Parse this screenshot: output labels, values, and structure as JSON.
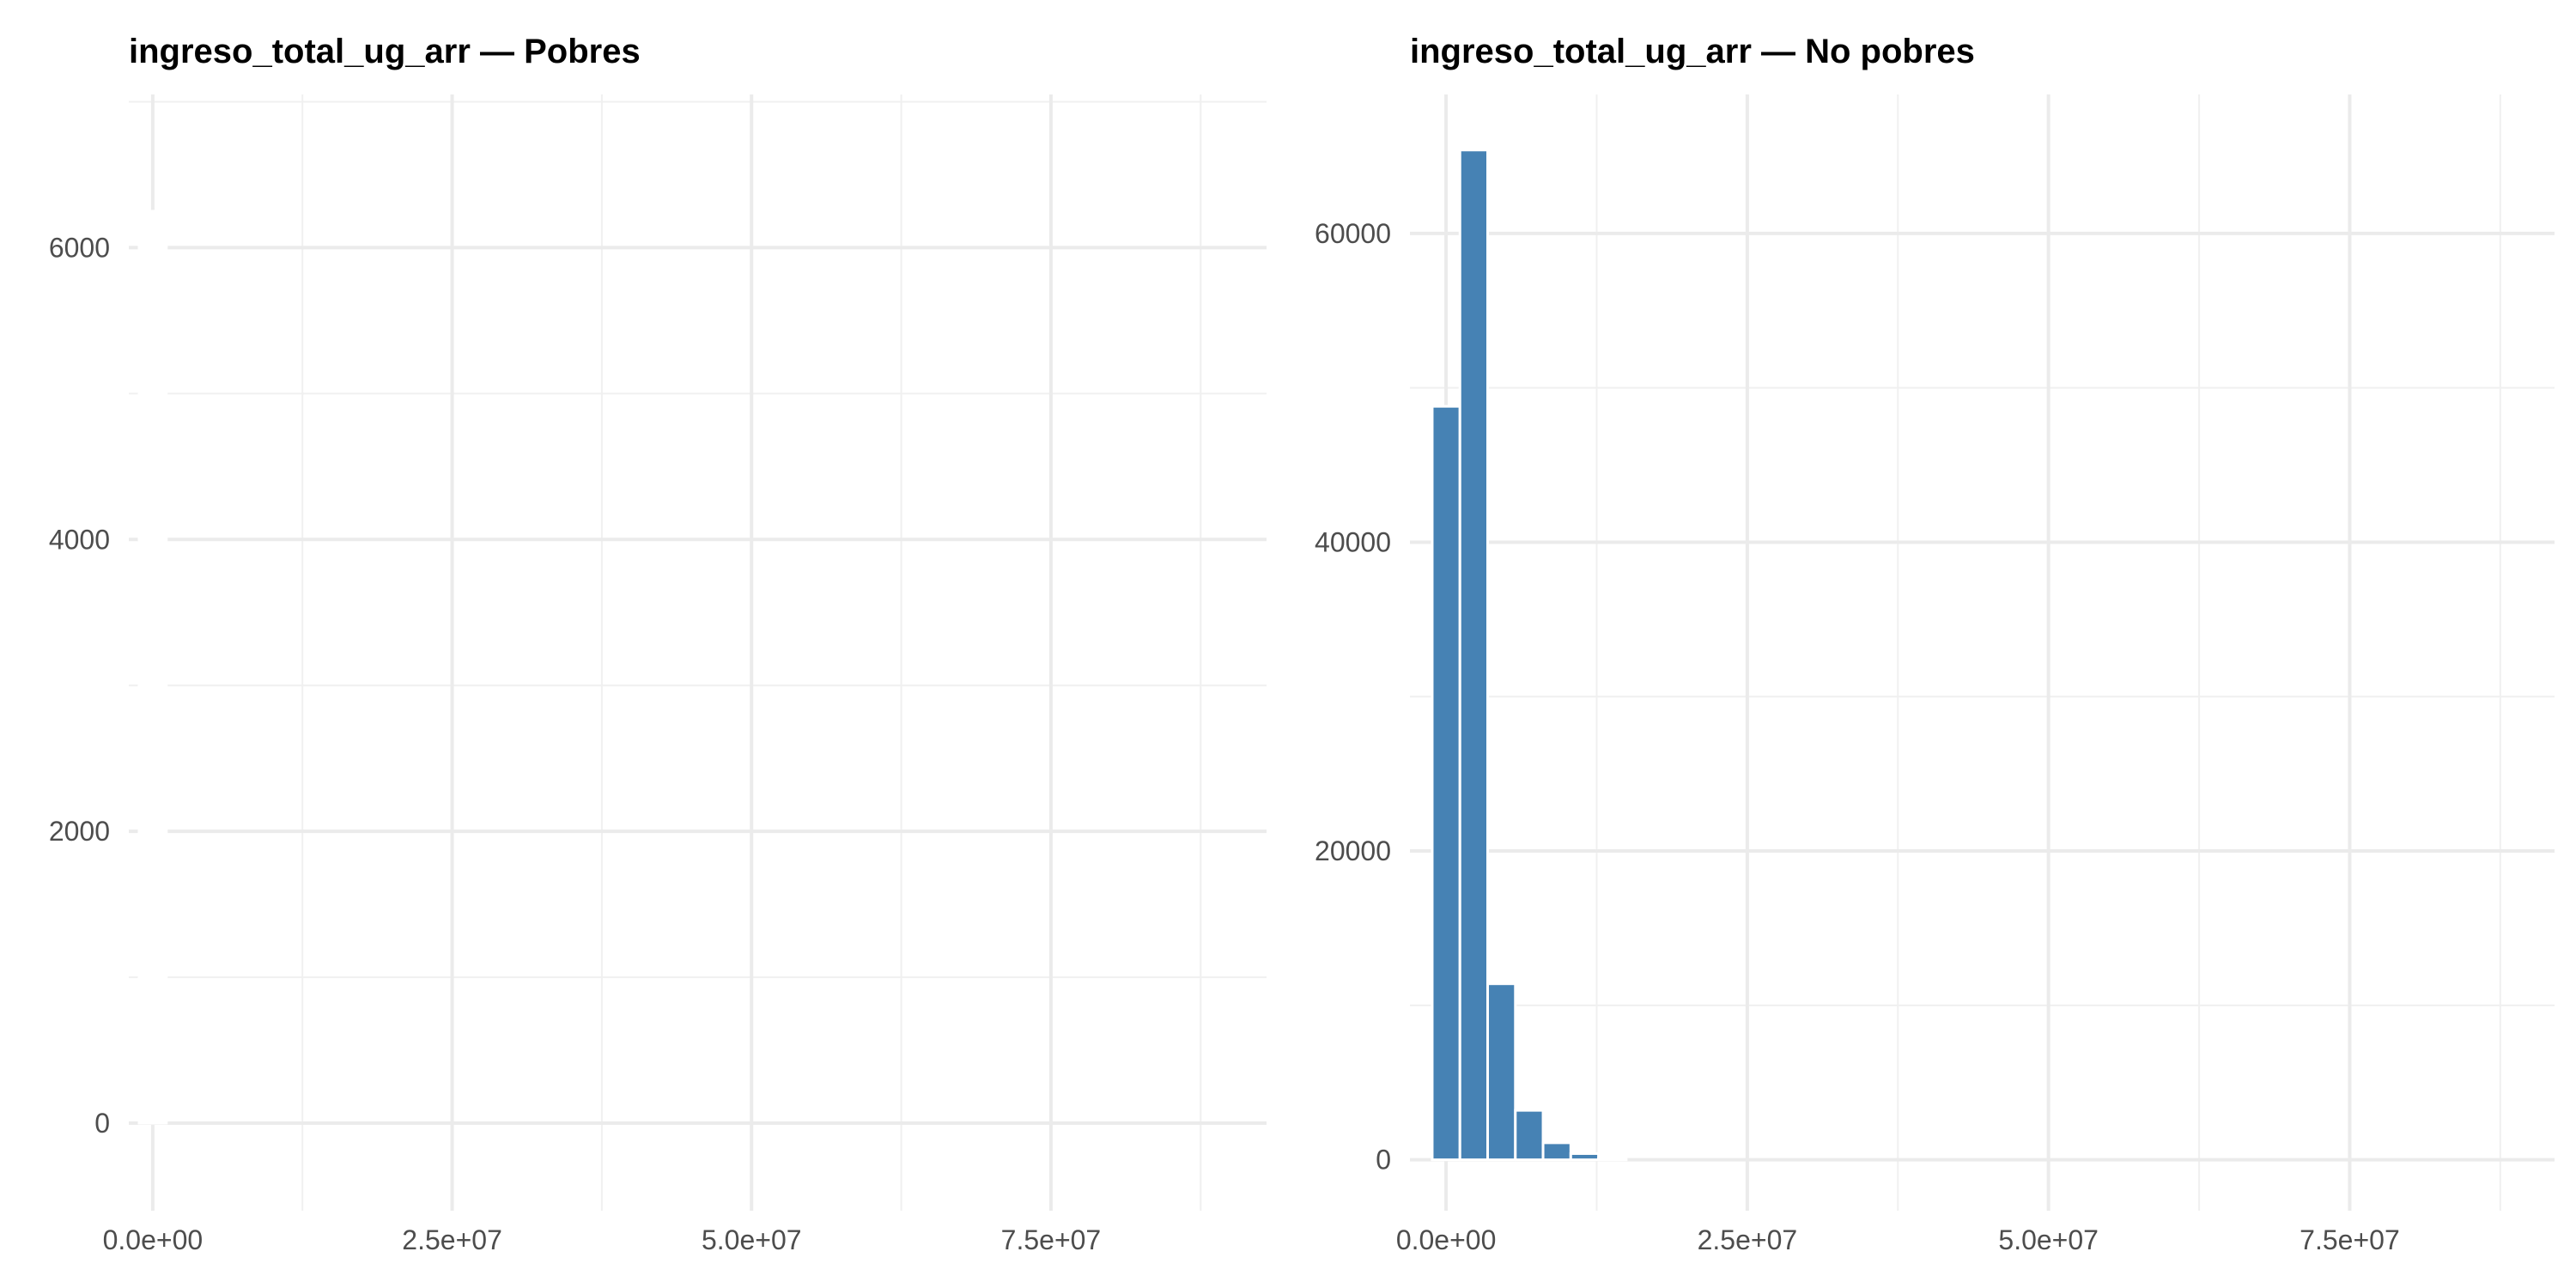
{
  "chart_data": [
    {
      "type": "bar",
      "title": "ingreso_total_ug_arr — Pobres",
      "xlabel": "",
      "ylabel": "",
      "xlim": [
        -2000000,
        93000000
      ],
      "ylim": [
        -600,
        7050
      ],
      "bin_width": 2280000,
      "x_ticks": [
        0,
        25000000,
        50000000,
        75000000
      ],
      "x_tick_labels": [
        "0.0e+00",
        "2.5e+07",
        "5.0e+07",
        "7.5e+07"
      ],
      "y_ticks": [
        0,
        2000,
        4000,
        6000
      ],
      "y_tick_labels": [
        "0",
        "2000",
        "4000",
        "6000"
      ],
      "x": [
        0
      ],
      "values": [
        6250
      ],
      "bar_color": "#ffffff",
      "grid": true,
      "legend": "none"
    },
    {
      "type": "bar",
      "title": "ingreso_total_ug_arr — No pobres",
      "xlabel": "",
      "ylabel": "",
      "xlim": [
        -3000000,
        92000000
      ],
      "ylim": [
        -3300,
        69000
      ],
      "bin_width": 2300000,
      "x_ticks": [
        0,
        25000000,
        50000000,
        75000000
      ],
      "x_tick_labels": [
        "0.0e+00",
        "2.5e+07",
        "5.0e+07",
        "7.5e+07"
      ],
      "y_ticks": [
        0,
        20000,
        40000,
        60000
      ],
      "y_tick_labels": [
        "0",
        "20000",
        "40000",
        "60000"
      ],
      "x": [
        0,
        2300000,
        4600000,
        6900000,
        9200000,
        11500000,
        13800000
      ],
      "values": [
        48800,
        65400,
        11400,
        3200,
        1100,
        400,
        100
      ],
      "bar_color": "#4682b4",
      "grid": true,
      "legend": "none"
    }
  ]
}
